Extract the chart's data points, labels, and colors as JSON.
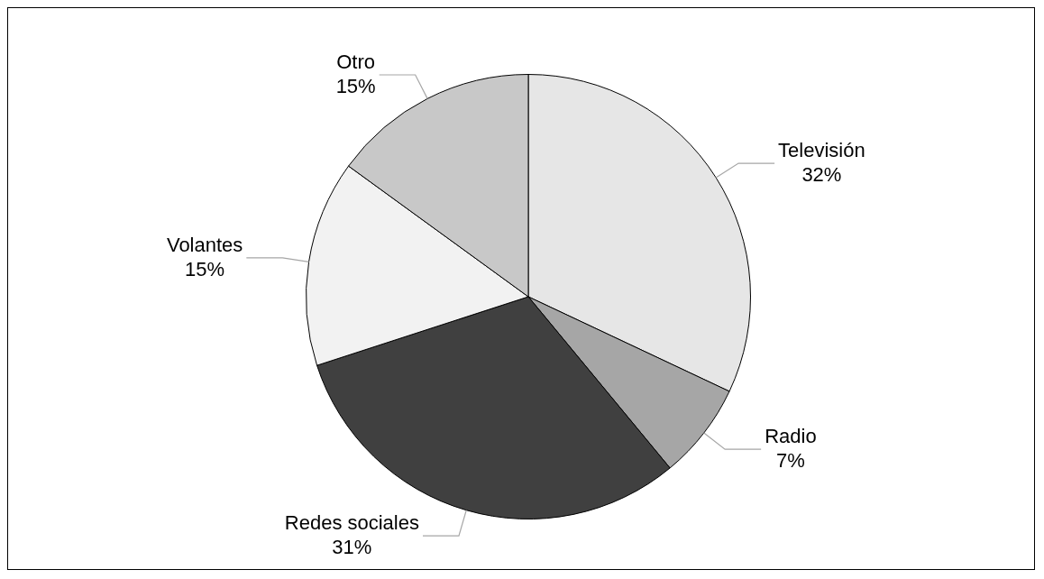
{
  "chart_data": {
    "type": "pie",
    "categories": [
      "Televisión",
      "Radio",
      "Redes sociales",
      "Volantes",
      "Otro"
    ],
    "values": [
      32,
      7,
      31,
      15,
      15
    ],
    "colors": [
      "#e6e6e6",
      "#a6a6a6",
      "#404040",
      "#f2f2f2",
      "#c8c8c8"
    ],
    "value_labels": [
      "32%",
      "7%",
      "31%",
      "15%",
      "15%"
    ],
    "legend": false
  }
}
